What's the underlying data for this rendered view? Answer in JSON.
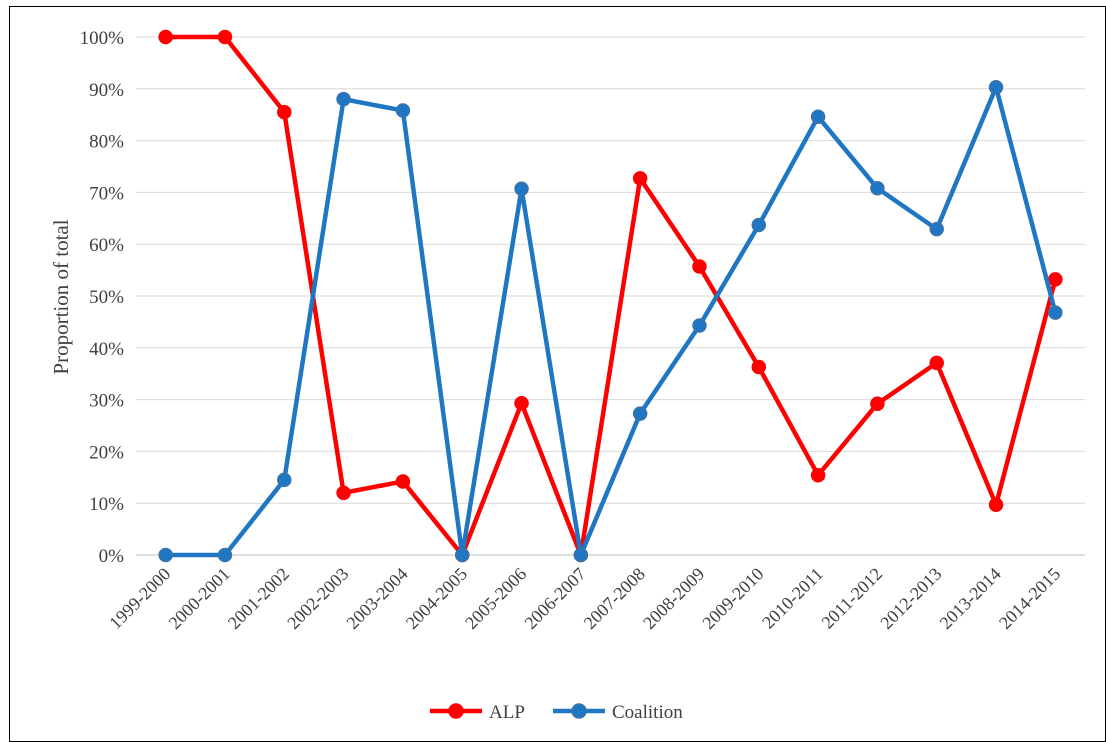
{
  "chart_data": {
    "type": "line",
    "title": "",
    "xlabel": "",
    "ylabel": "Proportion of total",
    "ylim": [
      0,
      100
    ],
    "y_ticks": [
      "0%",
      "10%",
      "20%",
      "30%",
      "40%",
      "50%",
      "60%",
      "70%",
      "80%",
      "90%",
      "100%"
    ],
    "categories": [
      "1999-2000",
      "2000-2001",
      "2001-2002",
      "2002-2003",
      "2003-2004",
      "2004-2005",
      "2005-2006",
      "2006-2007",
      "2007-2008",
      "2008-2009",
      "2009-2010",
      "2010-2011",
      "2011-2012",
      "2012-2013",
      "2013-2014",
      "2014-2015"
    ],
    "series": [
      {
        "name": "ALP",
        "color": "#ff0000",
        "values": [
          100,
          100,
          85.5,
          12,
          14.2,
          0,
          29.3,
          0,
          72.7,
          55.7,
          36.3,
          15.4,
          29.2,
          37.1,
          9.7,
          53.2
        ]
      },
      {
        "name": "Coalition",
        "color": "#1f77c4",
        "values": [
          0,
          0,
          14.5,
          88,
          85.8,
          0,
          70.7,
          0,
          27.3,
          44.3,
          63.7,
          84.6,
          70.8,
          62.9,
          90.3,
          46.8
        ]
      }
    ],
    "grid": true,
    "legend_position": "bottom"
  }
}
